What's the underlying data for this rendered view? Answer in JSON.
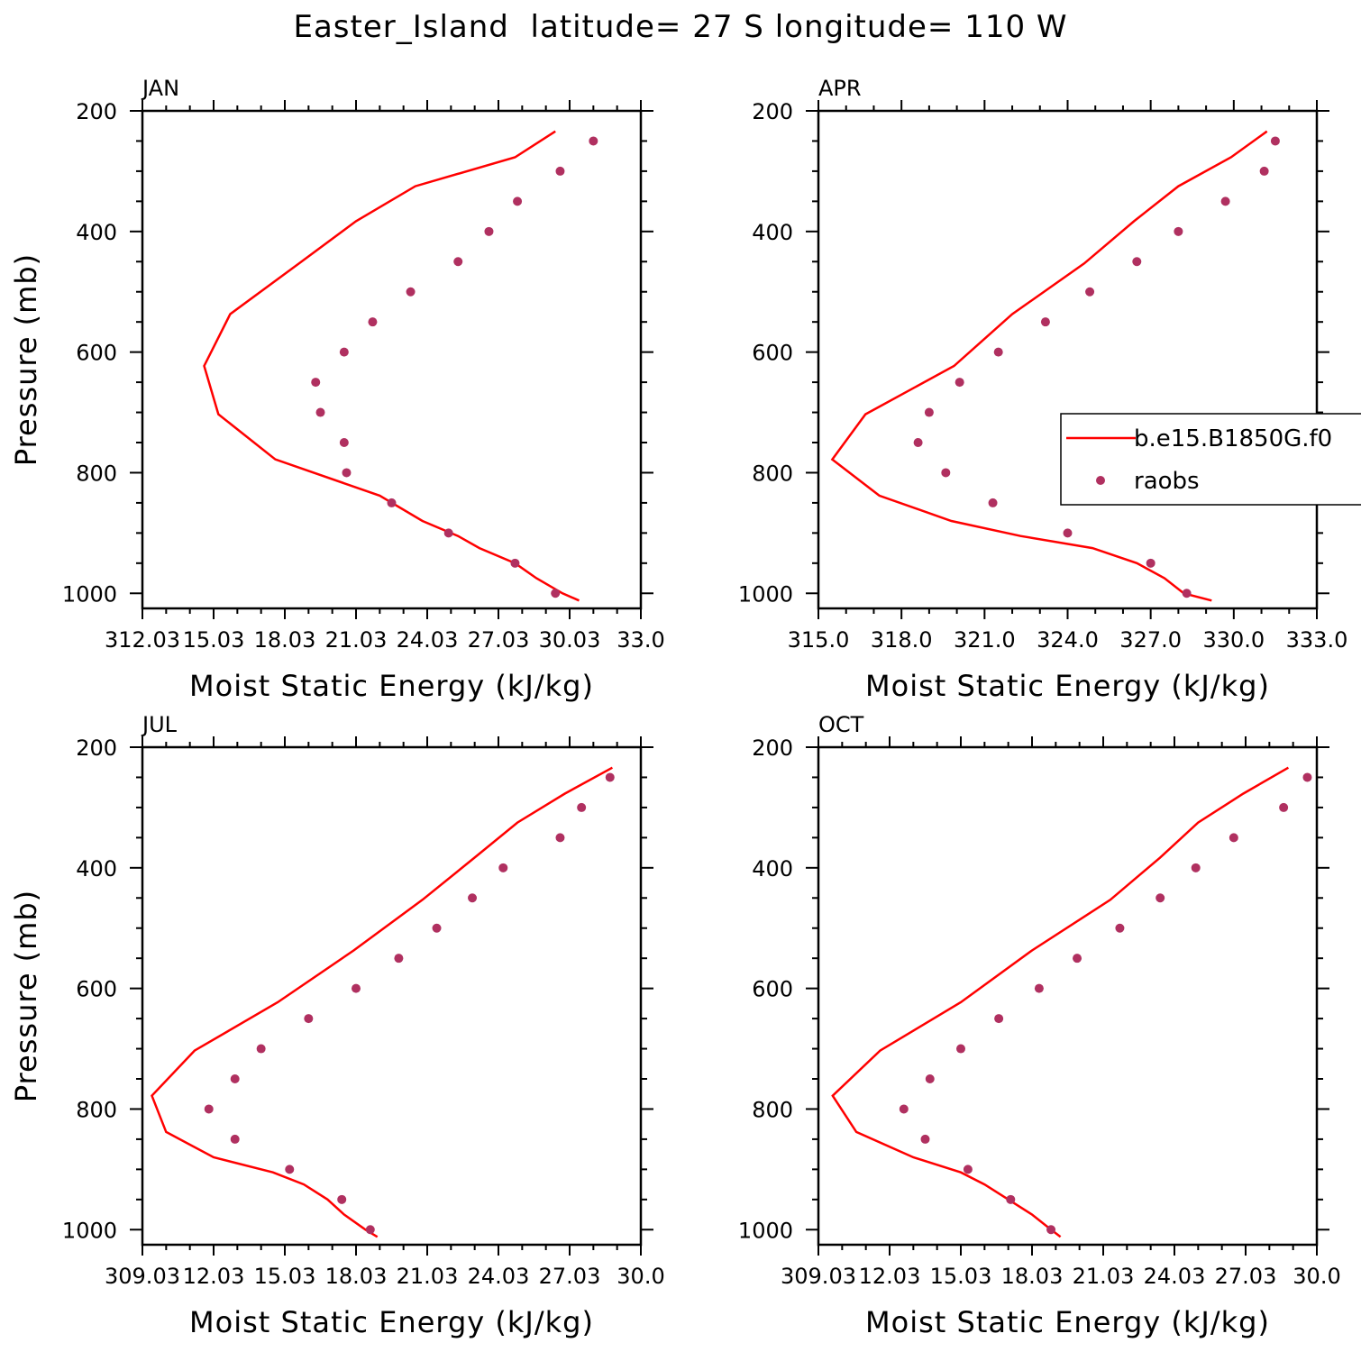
{
  "figure_title": "Easter_Island  latitude= 27 S longitude= 110 W",
  "legend": {
    "model_label": "b.e15.B1850G.f0",
    "obs_label": "raobs",
    "placement": "right, middle of APR panel",
    "model_color": "#ff0000",
    "obs_color": "#b03060"
  },
  "chart_data": [
    {
      "type": "line",
      "panel": "JAN",
      "title": "JAN",
      "xlabel": "Moist Static Energy (kJ/kg)",
      "ylabel": "Pressure (mb)",
      "xlim": [
        312.0,
        333.0
      ],
      "ylim": [
        1025,
        200
      ],
      "xticks": [
        "312.03",
        "15.03",
        "18.03",
        "21.03",
        "24.03",
        "27.03",
        "30.03",
        "33.0"
      ],
      "yticks": [
        "200",
        "400",
        "600",
        "800",
        "1000"
      ],
      "series": [
        {
          "name": "b.e15.B1850G.f0",
          "type": "line",
          "x": [
            330.4,
            329.7,
            328.6,
            327.7,
            326.2,
            325.3,
            323.8,
            322.0,
            317.6,
            315.2,
            314.6,
            315.7,
            318.6,
            321.0,
            323.5,
            327.7,
            329.4
          ],
          "y": [
            1012,
            1000,
            975,
            950,
            925,
            905,
            880,
            838,
            778,
            703,
            623,
            537,
            453,
            383,
            325,
            277,
            234
          ]
        },
        {
          "name": "raobs",
          "type": "scatter",
          "x": [
            329.4,
            327.7,
            324.9,
            322.5,
            320.6,
            320.5,
            319.5,
            319.3,
            320.5,
            321.7,
            323.3,
            325.3,
            326.6,
            327.8,
            329.6,
            331.0
          ],
          "y": [
            1000,
            950,
            900,
            850,
            800,
            750,
            700,
            650,
            600,
            550,
            500,
            450,
            400,
            350,
            300,
            250
          ]
        }
      ]
    },
    {
      "type": "line",
      "panel": "APR",
      "title": "APR",
      "xlabel": "Moist Static Energy (kJ/kg)",
      "ylabel": "Pressure (mb)",
      "xlim": [
        315.0,
        333.0
      ],
      "ylim": [
        1025,
        200
      ],
      "xticks": [
        "315.0",
        "318.0",
        "321.0",
        "324.0",
        "327.0",
        "330.0",
        "333.0"
      ],
      "yticks": [
        "200",
        "400",
        "600",
        "800",
        "1000"
      ],
      "series": [
        {
          "name": "b.e15.B1850G.f0",
          "type": "line",
          "x": [
            329.2,
            328.2,
            327.5,
            326.5,
            324.9,
            322.3,
            319.8,
            317.2,
            315.5,
            316.7,
            319.9,
            322.0,
            324.6,
            326.4,
            328.0,
            329.9,
            331.2
          ],
          "y": [
            1012,
            1000,
            975,
            950,
            925,
            905,
            880,
            838,
            778,
            703,
            623,
            537,
            453,
            383,
            325,
            277,
            234
          ]
        },
        {
          "name": "raobs",
          "type": "scatter",
          "x": [
            328.3,
            327.0,
            324.0,
            321.3,
            319.6,
            318.6,
            319.0,
            320.1,
            321.5,
            323.2,
            324.8,
            326.5,
            328.0,
            329.7,
            331.1,
            331.5
          ],
          "y": [
            1000,
            950,
            900,
            850,
            800,
            750,
            700,
            650,
            600,
            550,
            500,
            450,
            400,
            350,
            300,
            250
          ]
        }
      ]
    },
    {
      "type": "line",
      "panel": "JUL",
      "title": "JUL",
      "xlabel": "Moist Static Energy (kJ/kg)",
      "ylabel": "Pressure (mb)",
      "xlim": [
        309.0,
        330.0
      ],
      "ylim": [
        1025,
        200
      ],
      "xticks": [
        "309.03",
        "12.03",
        "15.03",
        "18.03",
        "21.03",
        "24.03",
        "27.03",
        "30.0"
      ],
      "yticks": [
        "200",
        "400",
        "600",
        "800",
        "1000"
      ],
      "series": [
        {
          "name": "b.e15.B1850G.f0",
          "type": "line",
          "x": [
            318.9,
            318.4,
            317.5,
            316.8,
            315.8,
            314.5,
            312.0,
            310.0,
            309.4,
            311.2,
            314.7,
            317.9,
            320.8,
            323.0,
            324.8,
            326.8,
            328.8
          ],
          "y": [
            1012,
            1000,
            975,
            950,
            925,
            905,
            880,
            838,
            778,
            703,
            623,
            537,
            453,
            383,
            325,
            277,
            234
          ]
        },
        {
          "name": "raobs",
          "type": "scatter",
          "x": [
            318.6,
            317.4,
            315.2,
            312.9,
            311.8,
            312.9,
            314.0,
            316.0,
            318.0,
            319.8,
            321.4,
            322.9,
            324.2,
            326.6,
            327.5,
            328.7
          ],
          "y": [
            1000,
            950,
            900,
            850,
            800,
            750,
            700,
            650,
            600,
            550,
            500,
            450,
            400,
            350,
            300,
            250
          ]
        }
      ]
    },
    {
      "type": "line",
      "panel": "OCT",
      "title": "OCT",
      "xlabel": "Moist Static Energy (kJ/kg)",
      "ylabel": "Pressure (mb)",
      "xlim": [
        309.0,
        330.0
      ],
      "ylim": [
        1025,
        200
      ],
      "xticks": [
        "309.03",
        "12.03",
        "15.03",
        "18.03",
        "21.03",
        "24.03",
        "27.03",
        "30.0"
      ],
      "yticks": [
        "200",
        "400",
        "600",
        "800",
        "1000"
      ],
      "series": [
        {
          "name": "b.e15.B1850G.f0",
          "type": "line",
          "x": [
            319.2,
            318.8,
            318.0,
            317.0,
            316.0,
            315.0,
            313.0,
            310.6,
            309.6,
            311.6,
            315.0,
            318.0,
            321.3,
            323.4,
            325.0,
            326.9,
            328.8
          ],
          "y": [
            1012,
            1000,
            975,
            950,
            925,
            905,
            880,
            838,
            778,
            703,
            623,
            537,
            453,
            383,
            325,
            277,
            234
          ]
        },
        {
          "name": "raobs",
          "type": "scatter",
          "x": [
            318.8,
            317.1,
            315.3,
            313.5,
            312.6,
            313.7,
            315.0,
            316.6,
            318.3,
            319.9,
            321.7,
            323.4,
            324.9,
            326.5,
            328.6,
            329.6
          ],
          "y": [
            1000,
            950,
            900,
            850,
            800,
            750,
            700,
            650,
            600,
            550,
            500,
            450,
            400,
            350,
            300,
            250
          ]
        }
      ]
    }
  ]
}
